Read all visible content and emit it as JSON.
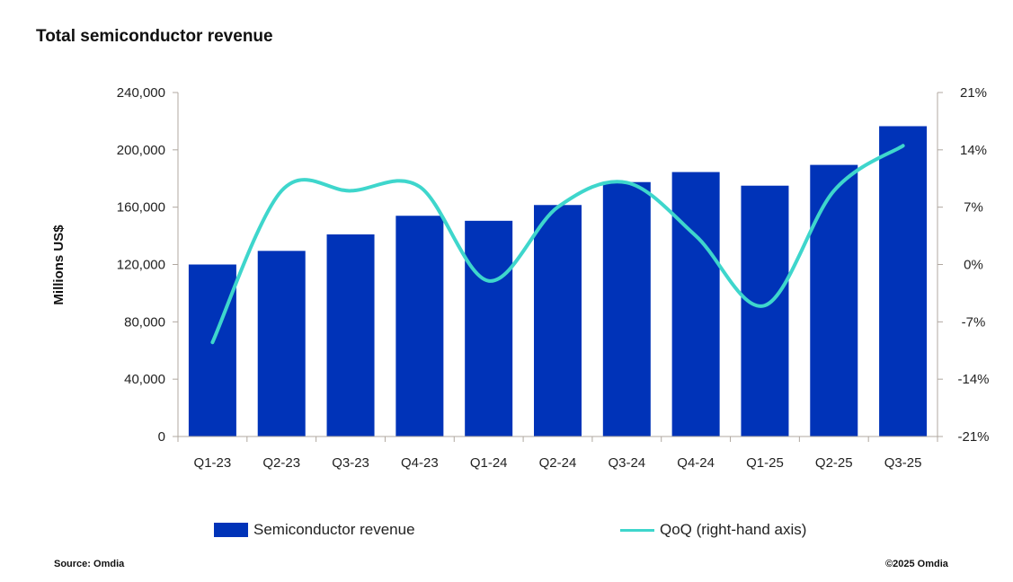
{
  "title": "Total semiconductor revenue",
  "legend": {
    "bar": "Semiconductor revenue",
    "line": "QoQ (right-hand axis)"
  },
  "footer": {
    "source": "Source: Omdia",
    "copyright": "©2025 Omdia"
  },
  "colors": {
    "bar": "#0033b8",
    "line": "#3ed6cc",
    "axis": "#b0a8a0"
  },
  "chart_data": {
    "type": "bar",
    "title": "Total semiconductor revenue",
    "categories": [
      "Q1-23",
      "Q2-23",
      "Q3-23",
      "Q4-23",
      "Q1-24",
      "Q2-24",
      "Q3-24",
      "Q4-24",
      "Q1-25",
      "Q2-25",
      "Q3-25"
    ],
    "ylabel": "Millions US$",
    "ylim": [
      0,
      240000
    ],
    "y_ticks": [
      "240,000",
      "200,000",
      "160,000",
      "120,000",
      "80,000",
      "40,000",
      "0"
    ],
    "y2_ticks": [
      "21%",
      "14%",
      "7%",
      "0%",
      "-7%",
      "-14%",
      "-21%"
    ],
    "y2lim": [
      -21,
      21
    ],
    "grid": false,
    "legend_position": "bottom",
    "series": [
      {
        "name": "Semiconductor revenue",
        "type": "bar",
        "axis": "left",
        "values": [
          120000,
          129500,
          141000,
          154000,
          150500,
          161500,
          177500,
          184500,
          175000,
          189500,
          216500
        ]
      },
      {
        "name": "QoQ (right-hand axis)",
        "type": "line",
        "axis": "right",
        "unit": "%",
        "values": [
          -9.5,
          9.0,
          9.0,
          9.5,
          -2.0,
          7.0,
          10.0,
          3.5,
          -5.0,
          9.0,
          14.5
        ]
      }
    ]
  }
}
